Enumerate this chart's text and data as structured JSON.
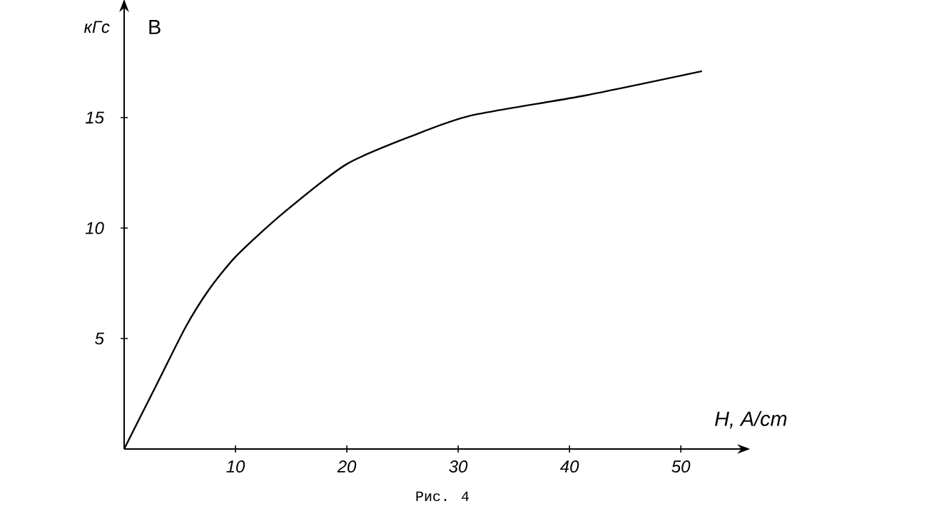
{
  "chart_data": {
    "type": "line",
    "xlabel": "H, A/cm",
    "ylabel": "B",
    "annotations": [
      "кГс",
      "Рис. 4"
    ],
    "x": [
      0,
      3,
      5.5,
      7.6,
      10,
      14.1,
      20,
      26,
      31.2,
      41.4,
      51.9
    ],
    "values": [
      0,
      3,
      5.5,
      7.2,
      8.7,
      10.6,
      12.9,
      14.2,
      15.1,
      16.0,
      17.1
    ],
    "color": "#000000",
    "line_style": "solid",
    "xlim": [
      0,
      55.5
    ],
    "ylim": [
      0,
      20
    ],
    "xticks": [
      10,
      20,
      30,
      40,
      50
    ],
    "yticks": [
      5,
      10,
      15
    ]
  }
}
